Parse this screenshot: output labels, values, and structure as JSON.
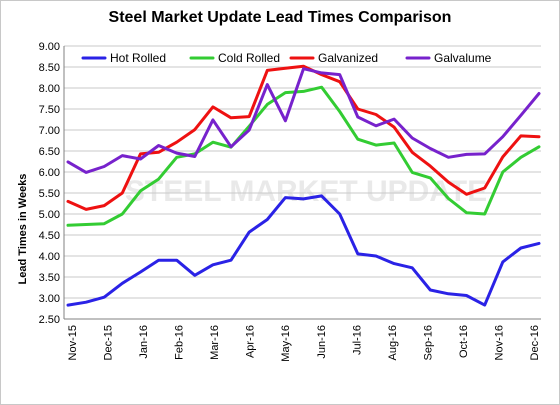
{
  "chart_data": {
    "type": "line",
    "title": "Steel Market Update Lead Times Comparison",
    "ylabel": "Lead Times in Weeks",
    "xlabel": "",
    "watermark": "STEEL MARKET UPDATE",
    "ylim": [
      2.5,
      9.0
    ],
    "yticks": [
      "2.50",
      "3.00",
      "3.50",
      "4.00",
      "4.50",
      "5.00",
      "5.50",
      "6.00",
      "6.50",
      "7.00",
      "7.50",
      "8.00",
      "8.50",
      "9.00"
    ],
    "xticks": [
      "Nov-15",
      "Dec-15",
      "Jan-16",
      "Feb-16",
      "Mar-16",
      "Apr-16",
      "May-16",
      "Jun-16",
      "Jul-16",
      "Aug-16",
      "Sep-16",
      "Oct-16",
      "Nov-16",
      "Dec-16"
    ],
    "legend_position": "top",
    "grid": true,
    "series": [
      {
        "name": "Hot Rolled",
        "color": "#2a22e6",
        "values": [
          2.83,
          2.9,
          3.02,
          3.35,
          3.62,
          3.9,
          3.9,
          3.54,
          3.79,
          3.9,
          4.57,
          4.87,
          5.39,
          5.36,
          5.43,
          5.0,
          4.05,
          4.0,
          3.82,
          3.72,
          3.19,
          3.1,
          3.06,
          2.83,
          3.86,
          4.19,
          4.3
        ]
      },
      {
        "name": "Cold Rolled",
        "color": "#33cc33",
        "values": [
          4.73,
          4.75,
          4.77,
          5.0,
          5.55,
          5.83,
          6.35,
          6.43,
          6.71,
          6.59,
          7.09,
          7.61,
          7.89,
          7.92,
          8.02,
          7.44,
          6.78,
          6.64,
          6.69,
          5.99,
          5.86,
          5.37,
          5.03,
          5.0,
          6.0,
          6.35,
          6.6
        ]
      },
      {
        "name": "Galvanized",
        "color": "#ee1111",
        "values": [
          5.3,
          5.11,
          5.2,
          5.5,
          6.43,
          6.47,
          6.71,
          7.01,
          7.55,
          7.29,
          7.32,
          8.42,
          8.47,
          8.52,
          8.32,
          8.15,
          7.5,
          7.37,
          7.07,
          6.47,
          6.14,
          5.76,
          5.47,
          5.62,
          6.36,
          6.86,
          6.84
        ]
      },
      {
        "name": "Galvalume",
        "color": "#7722cc",
        "values": [
          6.24,
          5.99,
          6.13,
          6.39,
          6.31,
          6.63,
          6.45,
          6.37,
          7.24,
          6.6,
          7.0,
          8.08,
          7.22,
          8.46,
          8.36,
          8.32,
          7.31,
          7.1,
          7.26,
          6.81,
          6.56,
          6.35,
          6.42,
          6.43,
          6.84,
          7.35,
          7.87
        ]
      }
    ]
  }
}
